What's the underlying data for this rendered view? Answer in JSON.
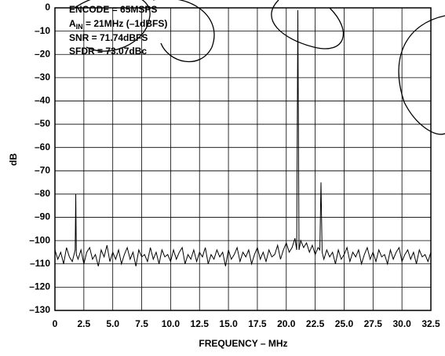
{
  "chart_data": {
    "type": "line",
    "annotations": [
      "ENCODE = 65MSPS",
      {
        "main": "A",
        "sub": "IN",
        "rest": " = 21MHz (–1dBFS)"
      },
      "SNR = 71.74dBFS",
      "SFDR = 73.07dBc"
    ],
    "x_label": "FREQUENCY – MHz",
    "y_label": "dB",
    "xlim": [
      0,
      32.5
    ],
    "ylim": [
      -130,
      0
    ],
    "xticks": [
      0,
      2.5,
      {
        "value": 5,
        "label": "5.0"
      },
      7.5,
      {
        "value": 10,
        "label": "10.0"
      },
      12.5,
      {
        "value": 15,
        "label": "15.0"
      },
      17.5,
      {
        "value": 20,
        "label": "20.0"
      },
      22.5,
      {
        "value": 25,
        "label": "25.0"
      },
      27.5,
      {
        "value": 30,
        "label": "30.0"
      },
      32.5
    ],
    "yticks": [
      0,
      {
        "value": -10,
        "label": "–10"
      },
      {
        "value": -20,
        "label": "–20"
      },
      {
        "value": -30,
        "label": "–30"
      },
      {
        "value": -40,
        "label": "–40"
      },
      {
        "value": -50,
        "label": "–50"
      },
      {
        "value": -60,
        "label": "–60"
      },
      {
        "value": -70,
        "label": "–70"
      },
      {
        "value": -80,
        "label": "–80"
      },
      {
        "value": -90,
        "label": "–90"
      },
      {
        "value": -100,
        "label": "–100"
      },
      {
        "value": -110,
        "label": "–110"
      },
      {
        "value": -120,
        "label": "–120"
      },
      {
        "value": -130,
        "label": "–130"
      }
    ],
    "grid": true,
    "color": "#000000",
    "x": [
      0,
      0.25,
      0.5,
      0.75,
      1,
      1.25,
      1.5,
      1.75,
      1.8,
      1.85,
      2,
      2.25,
      2.5,
      2.75,
      3,
      3.25,
      3.5,
      3.75,
      4,
      4.25,
      4.5,
      4.75,
      5,
      5.25,
      5.5,
      5.75,
      6,
      6.25,
      6.5,
      6.75,
      7,
      7.25,
      7.5,
      7.75,
      8,
      8.25,
      8.5,
      8.75,
      9,
      9.25,
      9.5,
      9.75,
      10,
      10.25,
      10.5,
      10.75,
      11,
      11.25,
      11.5,
      11.75,
      12,
      12.25,
      12.5,
      12.75,
      13,
      13.25,
      13.5,
      13.75,
      14,
      14.25,
      14.5,
      14.75,
      15,
      15.25,
      15.5,
      15.75,
      16,
      16.25,
      16.5,
      16.75,
      17,
      17.25,
      17.5,
      17.75,
      18,
      18.25,
      18.5,
      18.75,
      19,
      19.25,
      19.5,
      19.75,
      20,
      20.25,
      20.5,
      20.75,
      20.9,
      21,
      21.1,
      21.25,
      21.5,
      21.75,
      22,
      22.25,
      22.5,
      22.75,
      22.9,
      23,
      23.1,
      23.25,
      23.5,
      23.75,
      24,
      24.25,
      24.5,
      24.75,
      25,
      25.25,
      25.5,
      25.75,
      26,
      26.25,
      26.5,
      26.75,
      27,
      27.25,
      27.5,
      27.75,
      28,
      28.25,
      28.5,
      28.75,
      29,
      29.25,
      29.5,
      29.75,
      30,
      30.25,
      30.5,
      30.75,
      31,
      31.25,
      31.5,
      31.75,
      32,
      32.25,
      32.5
    ],
    "values": [
      -104,
      -108,
      -105,
      -110,
      -103,
      -107,
      -109,
      -104,
      -80,
      -106,
      -108,
      -104,
      -110,
      -105,
      -103,
      -108,
      -106,
      -111,
      -104,
      -107,
      -102,
      -109,
      -105,
      -108,
      -104,
      -110,
      -106,
      -103,
      -108,
      -105,
      -111,
      -104,
      -107,
      -106,
      -109,
      -103,
      -108,
      -105,
      -110,
      -104,
      -107,
      -106,
      -109,
      -104,
      -108,
      -105,
      -103,
      -110,
      -106,
      -108,
      -104,
      -109,
      -105,
      -107,
      -103,
      -110,
      -106,
      -108,
      -104,
      -107,
      -105,
      -111,
      -104,
      -108,
      -106,
      -103,
      -109,
      -105,
      -107,
      -104,
      -110,
      -106,
      -103,
      -108,
      -105,
      -109,
      -104,
      -107,
      -106,
      -102,
      -108,
      -104,
      -101,
      -105,
      -103,
      -99,
      -104,
      -1,
      -104,
      -100,
      -103,
      -101,
      -105,
      -102,
      -106,
      -103,
      -104,
      -75,
      -105,
      -108,
      -104,
      -107,
      -105,
      -110,
      -104,
      -108,
      -106,
      -103,
      -109,
      -105,
      -107,
      -104,
      -110,
      -106,
      -103,
      -108,
      -105,
      -109,
      -104,
      -107,
      -106,
      -110,
      -104,
      -108,
      -105,
      -103,
      -109,
      -106,
      -104,
      -108,
      -105,
      -110,
      -104,
      -107,
      -106,
      -109,
      -105
    ]
  }
}
